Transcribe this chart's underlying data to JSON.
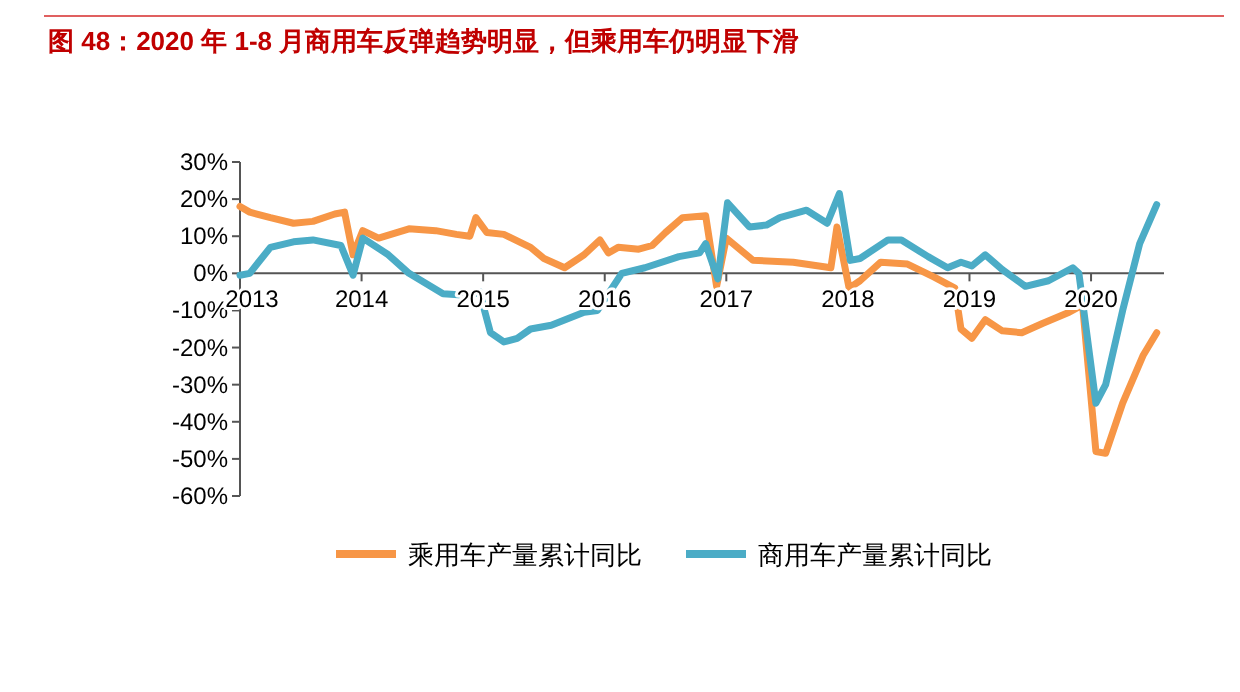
{
  "chart_data": {
    "type": "line",
    "title": "图 48：2020 年 1-8 月商用车反弹趋势明显，但乘用车仍明显下滑",
    "xlim": [
      2013,
      2020.6
    ],
    "xticks": [
      2013,
      2014,
      2015,
      2016,
      2017,
      2018,
      2019,
      2020
    ],
    "ylim": [
      -60,
      30
    ],
    "yticks": [
      {
        "value": 30,
        "label": "30%"
      },
      {
        "value": 20,
        "label": "20%"
      },
      {
        "value": 10,
        "label": "10%"
      },
      {
        "value": 0,
        "label": "0%"
      },
      {
        "value": -10,
        "label": "-10%"
      },
      {
        "value": -20,
        "label": "-20%"
      },
      {
        "value": -30,
        "label": "-30%"
      },
      {
        "value": -40,
        "label": "-40%"
      },
      {
        "value": -50,
        "label": "-50%"
      },
      {
        "value": -60,
        "label": "-60%"
      }
    ],
    "grid": false,
    "legend": "bottom",
    "marker": "none",
    "line_style": "solid",
    "series": [
      {
        "name": "乘用车产量累计同比",
        "color": "#f79646",
        "x": [
          2013.0,
          2013.08,
          2013.25,
          2013.44,
          2013.6,
          2013.78,
          2013.86,
          2013.93,
          2014.01,
          2014.14,
          2014.39,
          2014.61,
          2014.78,
          2014.89,
          2014.94,
          2015.03,
          2015.17,
          2015.39,
          2015.5,
          2015.67,
          2015.83,
          2015.96,
          2016.03,
          2016.11,
          2016.28,
          2016.39,
          2016.5,
          2016.64,
          2016.83,
          2016.92,
          2017.0,
          2017.22,
          2017.55,
          2017.86,
          2017.91,
          2018.01,
          2018.1,
          2018.27,
          2018.49,
          2018.71,
          2018.88,
          2018.93,
          2019.02,
          2019.13,
          2019.27,
          2019.43,
          2019.6,
          2019.82,
          2019.93,
          2020.04,
          2020.12,
          2020.26,
          2020.43,
          2020.54
        ],
        "values": [
          18,
          16.5,
          15,
          13.5,
          14,
          16,
          16.5,
          5,
          11.5,
          9.5,
          12,
          11.5,
          10.5,
          10,
          15,
          11,
          10.5,
          7,
          4,
          1.5,
          5,
          9,
          5.5,
          7,
          6.5,
          7.5,
          11,
          15,
          15.5,
          -3.5,
          9.5,
          3.5,
          3,
          1.5,
          12.5,
          -4,
          -2,
          3,
          2.5,
          -1,
          -4,
          -15,
          -17.5,
          -12.5,
          -15.5,
          -16,
          -13.5,
          -10.5,
          -8.5,
          -48,
          -48.5,
          -35,
          -22,
          -16
        ]
      },
      {
        "name": "商用车产量累计同比",
        "color": "#4bacc6",
        "x": [
          2013.0,
          2013.08,
          2013.25,
          2013.44,
          2013.6,
          2013.83,
          2013.93,
          2014.01,
          2014.22,
          2014.39,
          2014.67,
          2014.89,
          2014.97,
          2015.06,
          2015.17,
          2015.28,
          2015.39,
          2015.56,
          2015.83,
          2015.94,
          2016.03,
          2016.14,
          2016.33,
          2016.61,
          2016.78,
          2016.83,
          2016.93,
          2017.01,
          2017.19,
          2017.33,
          2017.44,
          2017.66,
          2017.83,
          2017.93,
          2018.02,
          2018.1,
          2018.33,
          2018.44,
          2018.66,
          2018.82,
          2018.93,
          2019.02,
          2019.13,
          2019.27,
          2019.46,
          2019.65,
          2019.85,
          2019.9,
          2020.04,
          2020.12,
          2020.26,
          2020.4,
          2020.54
        ],
        "values": [
          -0.5,
          0,
          7,
          8.5,
          9,
          7.5,
          -0.5,
          9.5,
          5,
          0,
          -5.5,
          -6,
          -5,
          -16,
          -18.5,
          -17.5,
          -15,
          -14,
          -10.5,
          -10,
          -5.5,
          0,
          1.5,
          4.5,
          5.5,
          8,
          -1.5,
          19,
          12.5,
          13,
          15,
          17,
          13.5,
          21.5,
          3.5,
          4,
          9,
          9,
          4.5,
          1.5,
          3,
          2,
          5,
          1,
          -3.5,
          -2,
          1.5,
          0,
          -35,
          -30,
          -10,
          8,
          18.5
        ]
      }
    ]
  }
}
